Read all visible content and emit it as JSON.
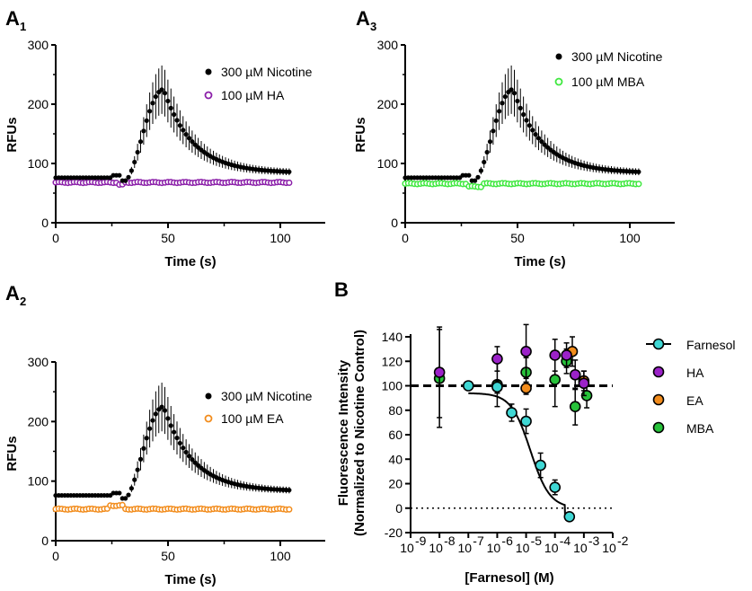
{
  "chart_data": [
    {
      "id": "A1",
      "panel_label": "A",
      "panel_sub": "1",
      "type": "scatter",
      "xlabel": "Time (s)",
      "ylabel": "RFUs",
      "xlim": [
        0,
        120
      ],
      "ylim": [
        0,
        300
      ],
      "xticks": [
        "0",
        "50",
        "100"
      ],
      "yticks": [
        "0",
        "100",
        "200",
        "300"
      ],
      "legend": "top-right",
      "series": [
        {
          "name": "300 µM Nicotine",
          "color": "#000000",
          "marker": "filled-circle",
          "baseline": 75,
          "peak": 225,
          "peak_time": 48,
          "end_value": 84,
          "error_at_peak": 38
        },
        {
          "name": "100 µM HA",
          "color": "#8b1fa9",
          "marker": "open-circle",
          "value": 68,
          "error": 2
        }
      ]
    },
    {
      "id": "A3",
      "panel_label": "A",
      "panel_sub": "3",
      "type": "scatter",
      "xlabel": "Time (s)",
      "ylabel": "RFUs",
      "xlim": [
        0,
        120
      ],
      "ylim": [
        0,
        300
      ],
      "xticks": [
        "0",
        "50",
        "100"
      ],
      "yticks": [
        "0",
        "100",
        "200",
        "300"
      ],
      "legend": "top-right",
      "series": [
        {
          "name": "300 µM Nicotine",
          "color": "#000000",
          "marker": "filled-circle",
          "baseline": 75,
          "peak": 225,
          "peak_time": 48,
          "end_value": 84,
          "error_at_peak": 38
        },
        {
          "name": "100 µM MBA",
          "color": "#3ee83e",
          "marker": "open-circle",
          "value": 66,
          "error": 4
        }
      ]
    },
    {
      "id": "A2",
      "panel_label": "A",
      "panel_sub": "2",
      "type": "scatter",
      "xlabel": "Time (s)",
      "ylabel": "RFUs",
      "xlim": [
        0,
        120
      ],
      "ylim": [
        0,
        300
      ],
      "xticks": [
        "0",
        "50",
        "100"
      ],
      "yticks": [
        "0",
        "100",
        "200",
        "300"
      ],
      "legend": "top-right",
      "series": [
        {
          "name": "300 µM Nicotine",
          "color": "#000000",
          "marker": "filled-circle",
          "baseline": 75,
          "peak": 225,
          "peak_time": 48,
          "end_value": 83,
          "error_at_peak": 38
        },
        {
          "name": "100 µM EA",
          "color": "#f28c1c",
          "marker": "open-circle",
          "value": 53,
          "error": 2
        }
      ]
    },
    {
      "id": "B",
      "panel_label": "B",
      "type": "scatter",
      "xlabel": "[Farnesol] (M)",
      "ylabel": "Fluorescence Intensity",
      "ylabel2": "(Normalized to Nicotine Control)",
      "xscale": "log10",
      "xlim": [
        -9,
        -2
      ],
      "ylim": [
        -20,
        150
      ],
      "xticks": [
        "-9",
        "-8",
        "-7",
        "-6",
        "-5",
        "-4",
        "-3",
        "-2"
      ],
      "yticks": [
        "-20",
        "0",
        "20",
        "40",
        "60",
        "80",
        "100",
        "120",
        "140"
      ],
      "reference_lines": [
        {
          "y": 100,
          "style": "dashed"
        },
        {
          "y": 0,
          "style": "dotted"
        }
      ],
      "fit_curve": {
        "series": "Farnesol",
        "top": 94,
        "bottom": 0,
        "log_ic50": -4.85,
        "hill": 1.3,
        "cutoff_log": -3.65
      },
      "legend": "right",
      "series": [
        {
          "name": "Farnesol",
          "color": "#3fd7d4",
          "points": [
            {
              "x": -7,
              "y": 100,
              "err": 0
            },
            {
              "x": -6,
              "y": 99,
              "err": 5
            },
            {
              "x": -5.5,
              "y": 78,
              "err": 7
            },
            {
              "x": -5,
              "y": 71,
              "err": 10
            },
            {
              "x": -4.5,
              "y": 35,
              "err": 10
            },
            {
              "x": -4,
              "y": 17,
              "err": 6
            },
            {
              "x": -3.5,
              "y": -7,
              "err": 3
            }
          ]
        },
        {
          "name": "HA",
          "color": "#9b22c8",
          "points": [
            {
              "x": -8,
              "y": 111,
              "err": 37
            },
            {
              "x": -6,
              "y": 122,
              "err": 10
            },
            {
              "x": -5,
              "y": 128,
              "err": 22
            },
            {
              "x": -4,
              "y": 125,
              "err": 13
            },
            {
              "x": -3.6,
              "y": 125,
              "err": 10
            },
            {
              "x": -3.3,
              "y": 109,
              "err": 12
            },
            {
              "x": -3,
              "y": 102,
              "err": 10
            }
          ]
        },
        {
          "name": "EA",
          "color": "#f28c1c",
          "points": [
            {
              "x": -5,
              "y": 98,
              "err": 5
            },
            {
              "x": -3.4,
              "y": 128,
              "err": 12
            },
            {
              "x": -3,
              "y": 104,
              "err": 8
            }
          ]
        },
        {
          "name": "MBA",
          "color": "#27c23a",
          "points": [
            {
              "x": -8,
              "y": 106,
              "err": 40
            },
            {
              "x": -6,
              "y": 101,
              "err": 18
            },
            {
              "x": -5,
              "y": 111,
              "err": 12
            },
            {
              "x": -4,
              "y": 105,
              "err": 22
            },
            {
              "x": -3.6,
              "y": 120,
              "err": 10
            },
            {
              "x": -3.3,
              "y": 83,
              "err": 15
            },
            {
              "x": -2.9,
              "y": 92,
              "err": 10
            }
          ]
        }
      ]
    }
  ]
}
